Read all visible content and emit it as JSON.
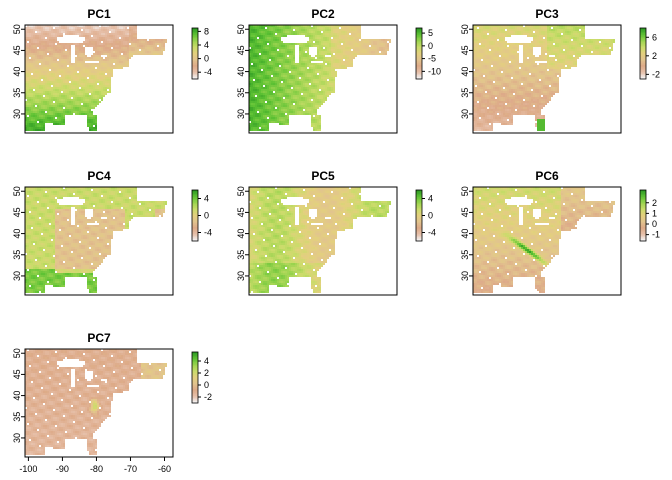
{
  "chart_data": [
    {
      "type": "heatmap",
      "title": "PC1",
      "legend_ticks": [
        8,
        4,
        0,
        -4
      ],
      "legend_range": [
        -6,
        9
      ],
      "pattern": "south-high",
      "x_ticks": [],
      "y_ticks": [
        30,
        35,
        40,
        45,
        50
      ]
    },
    {
      "type": "heatmap",
      "title": "PC2",
      "legend_ticks": [
        5,
        0,
        -5,
        -10
      ],
      "legend_range": [
        -13,
        7
      ],
      "pattern": "west-high",
      "x_ticks": [],
      "y_ticks": [
        30,
        35,
        40,
        45,
        50
      ]
    },
    {
      "type": "heatmap",
      "title": "PC3",
      "legend_ticks": [
        6,
        2,
        -2
      ],
      "legend_range": [
        -3,
        8
      ],
      "pattern": "north-high",
      "x_ticks": [],
      "y_ticks": [
        30,
        35,
        40,
        45,
        50
      ]
    },
    {
      "type": "heatmap",
      "title": "PC4",
      "legend_ticks": [
        4,
        0,
        -4
      ],
      "legend_range": [
        -6,
        6
      ],
      "pattern": "edges-high",
      "x_ticks": [],
      "y_ticks": [
        30,
        35,
        40,
        45,
        50
      ]
    },
    {
      "type": "heatmap",
      "title": "PC5",
      "legend_ticks": [
        4,
        0,
        -4
      ],
      "legend_range": [
        -6,
        6
      ],
      "pattern": "mixed",
      "x_ticks": [],
      "y_ticks": [
        30,
        35,
        40,
        45,
        50
      ]
    },
    {
      "type": "heatmap",
      "title": "PC6",
      "legend_ticks": [
        2,
        1,
        0,
        -1
      ],
      "legend_range": [
        -1.6,
        3.2
      ],
      "pattern": "appalachian-high",
      "x_ticks": [],
      "y_ticks": [
        30,
        35,
        40,
        45,
        50
      ]
    },
    {
      "type": "heatmap",
      "title": "PC7",
      "legend_ticks": [
        4,
        2,
        0,
        -2
      ],
      "legend_range": [
        -3,
        5.5
      ],
      "pattern": "mostly-low",
      "x_ticks": [
        -100,
        -90,
        -80,
        -70,
        -60
      ],
      "y_ticks": [
        30,
        35,
        40,
        45,
        50
      ]
    }
  ],
  "extent": {
    "xlim": [
      -101,
      -57.5
    ],
    "ylim": [
      25.5,
      51
    ]
  },
  "colors": {
    "palette": [
      "#f3f1f1",
      "#e6bfa8",
      "#ddaa88",
      "#e2c48e",
      "#e3d07e",
      "#cadc6a",
      "#9dd450",
      "#5ec234",
      "#2f9b24"
    ],
    "nodata": "#ffffff",
    "frame": "#000000"
  }
}
